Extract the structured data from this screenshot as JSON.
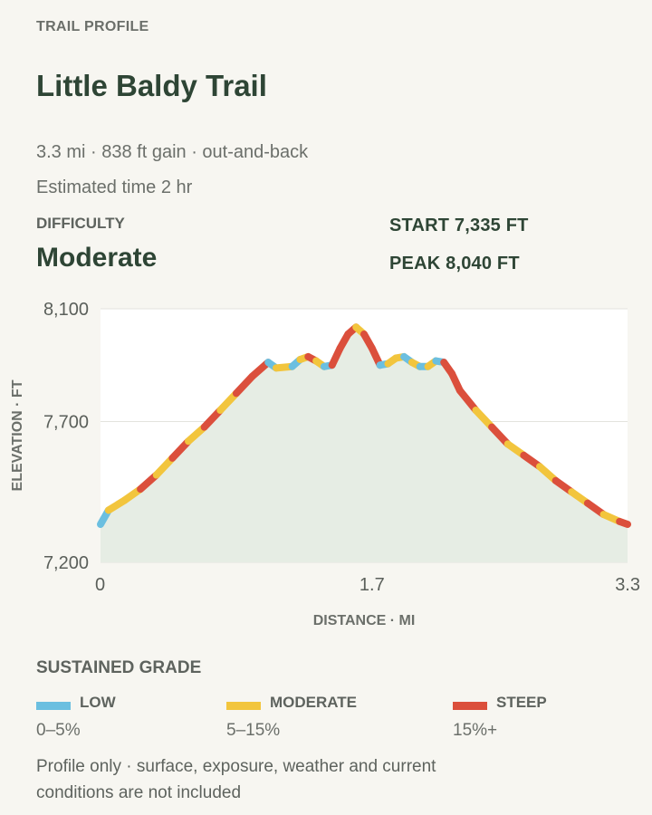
{
  "header": {
    "eyebrow": "TRAIL PROFILE",
    "title": "Little Baldy Trail",
    "meta_line1": "3.3 mi · 838 ft gain · out-and-back",
    "meta_line2": "Estimated time 2 hr"
  },
  "difficulty": {
    "label": "DIFFICULTY",
    "value": "Moderate"
  },
  "stats": {
    "start": "START 7,335 FT",
    "peak": "PEAK 8,040 FT"
  },
  "chart_data": {
    "type": "line",
    "title": "",
    "xlabel": "DISTANCE · MI",
    "ylabel": "ELEVATION · FT",
    "xlim": [
      0,
      3.3
    ],
    "ylim": [
      7200,
      8100
    ],
    "x_ticks": [
      {
        "value": 0,
        "label": "0"
      },
      {
        "value": 1.7,
        "label": "1.7"
      },
      {
        "value": 3.3,
        "label": "3.3"
      }
    ],
    "y_ticks": [
      {
        "value": 7200,
        "label": "7,200"
      },
      {
        "value": 7700,
        "label": "7,700"
      },
      {
        "value": 8100,
        "label": "8,100"
      }
    ],
    "grid": true,
    "area_fill": "#e6ede4",
    "series": [
      {
        "x": [
          0,
          0.05,
          0.15,
          0.25,
          0.35,
          0.45,
          0.55,
          0.65,
          0.75,
          0.85,
          0.95,
          1.05,
          1.1,
          1.2,
          1.25,
          1.3,
          1.35,
          1.4,
          1.45,
          1.5,
          1.55,
          1.6,
          1.65,
          1.7,
          1.75,
          1.8,
          1.85,
          1.9,
          1.95,
          2.0,
          2.05,
          2.1,
          2.15,
          2.2,
          2.25,
          2.35,
          2.45,
          2.55,
          2.65,
          2.75,
          2.85,
          2.95,
          3.05,
          3.15,
          3.25,
          3.3
        ],
        "y": [
          7335,
          7385,
          7420,
          7460,
          7510,
          7570,
          7630,
          7680,
          7740,
          7800,
          7860,
          7910,
          7890,
          7895,
          7920,
          7930,
          7915,
          7895,
          7900,
          7960,
          8010,
          8035,
          8010,
          7960,
          7900,
          7905,
          7925,
          7930,
          7910,
          7895,
          7895,
          7915,
          7910,
          7870,
          7810,
          7740,
          7680,
          7620,
          7580,
          7540,
          7490,
          7450,
          7410,
          7370,
          7345,
          7335
        ],
        "grade": [
          "low",
          "moderate",
          "moderate",
          "steep",
          "moderate",
          "steep",
          "moderate",
          "steep",
          "moderate",
          "steep",
          "steep",
          "low",
          "moderate",
          "low",
          "moderate",
          "steep",
          "moderate",
          "low",
          "steep",
          "steep",
          "steep",
          "moderate",
          "steep",
          "steep",
          "low",
          "moderate",
          "moderate",
          "low",
          "moderate",
          "low",
          "moderate",
          "low",
          "steep",
          "steep",
          "steep",
          "moderate",
          "steep",
          "moderate",
          "steep",
          "moderate",
          "steep",
          "moderate",
          "steep",
          "moderate",
          "steep"
        ]
      }
    ],
    "grade_colors": {
      "low": "#6bbfe0",
      "moderate": "#f2c53d",
      "steep": "#db4f3c"
    }
  },
  "legend": {
    "title": "SUSTAINED GRADE",
    "items": [
      {
        "name": "LOW",
        "range": "0–5%",
        "color": "#6bbfe0"
      },
      {
        "name": "MODERATE",
        "range": "5–15%",
        "color": "#f2c53d"
      },
      {
        "name": "STEEP",
        "range": "15%+",
        "color": "#db4f3c"
      }
    ]
  },
  "note": "Profile only · surface, exposure, weather and current conditions are not included"
}
